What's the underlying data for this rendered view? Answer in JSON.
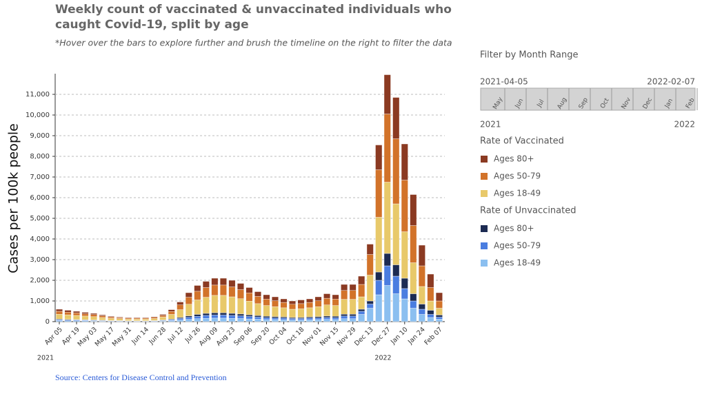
{
  "chart_data": {
    "type": "stacked_bar",
    "title_lines": [
      "Weekly count of vaccinated & unvaccinated individuals who",
      "caught Covid-19, split by age"
    ],
    "subtitle": "*Hover over the bars to explore further and brush the timeline on the right to filter the data",
    "y_axis_label": "Cases per 100k people",
    "source": "Source: Centers for Disease Control and Prevention",
    "categories": [
      "Apr 05",
      null,
      "Apr 19",
      null,
      "May 03",
      null,
      "May 17",
      null,
      "May 31",
      null,
      "Jun 14",
      null,
      "Jun 28",
      null,
      "Jul 12",
      null,
      "Jul 26",
      null,
      "Aug 09",
      null,
      "Aug 23",
      null,
      "Sep 06",
      null,
      "Sep 20",
      null,
      "Oct 04",
      null,
      "Oct 18",
      null,
      "Nov 01",
      null,
      "Nov 15",
      null,
      "Nov 29",
      null,
      "Dec 13",
      null,
      "Dec 27",
      null,
      "Jan 10",
      null,
      "Jan 24",
      null,
      "Feb 07"
    ],
    "year_labels": [
      "2021",
      "2022"
    ],
    "ylim": [
      0,
      12000
    ],
    "yticks": [
      0,
      {
        "value": 1000,
        "label": "1,000"
      },
      {
        "value": 2000,
        "label": "2,000"
      },
      {
        "value": 3000,
        "label": "3,000"
      },
      {
        "value": 4000,
        "label": "4,000"
      },
      {
        "value": 5000,
        "label": "5,000"
      },
      {
        "value": 6000,
        "label": "6,000"
      },
      {
        "value": 7000,
        "label": "7,000"
      },
      {
        "value": 8000,
        "label": "8,000"
      },
      {
        "value": 9000,
        "label": "9,000"
      },
      {
        "value": 10000,
        "label": "10,000"
      },
      {
        "value": 11000,
        "label": "11,000"
      }
    ],
    "grid": true,
    "series": [
      {
        "group": "Rate of Vaccinated",
        "name": "Ages 80+",
        "color": "#8b3a22",
        "values": [
          100,
          90,
          80,
          70,
          60,
          50,
          40,
          30,
          30,
          30,
          30,
          30,
          50,
          90,
          140,
          220,
          280,
          300,
          330,
          330,
          320,
          300,
          260,
          230,
          210,
          190,
          170,
          160,
          180,
          170,
          190,
          220,
          210,
          290,
          290,
          400,
          500,
          1200,
          1900,
          2000,
          1750,
          1500,
          1000,
          650,
          400
        ]
      },
      {
        "group": "Rate of Vaccinated",
        "name": "Ages 50-79",
        "color": "#d2732a",
        "values": [
          140,
          130,
          120,
          110,
          100,
          80,
          60,
          50,
          50,
          50,
          50,
          60,
          80,
          140,
          230,
          340,
          420,
          470,
          500,
          500,
          480,
          440,
          400,
          350,
          310,
          290,
          260,
          240,
          250,
          260,
          290,
          320,
          310,
          430,
          430,
          600,
          1000,
          2300,
          3300,
          3150,
          2500,
          1800,
          1000,
          650,
          350
        ]
      },
      {
        "group": "Rate of Vaccinated",
        "name": "Ages 18-49",
        "color": "#e8c96a",
        "values": [
          240,
          220,
          200,
          180,
          160,
          130,
          110,
          90,
          80,
          80,
          80,
          100,
          140,
          230,
          380,
          560,
          700,
          780,
          840,
          840,
          800,
          740,
          660,
          580,
          520,
          480,
          440,
          400,
          420,
          440,
          480,
          540,
          520,
          720,
          720,
          600,
          1250,
          2650,
          3450,
          2950,
          2250,
          1500,
          850,
          450,
          330
        ]
      },
      {
        "group": "Rate of Unvaccinated",
        "name": "Ages 80+",
        "color": "#1c2b52",
        "values": [
          30,
          30,
          20,
          20,
          20,
          20,
          10,
          10,
          10,
          10,
          10,
          10,
          20,
          30,
          50,
          70,
          90,
          100,
          110,
          110,
          100,
          90,
          80,
          70,
          70,
          60,
          60,
          50,
          50,
          60,
          60,
          70,
          70,
          90,
          90,
          100,
          150,
          400,
          600,
          550,
          500,
          350,
          250,
          200,
          100
        ]
      },
      {
        "group": "Rate of Unvaccinated",
        "name": "Ages 50-79",
        "color": "#4a7de0",
        "values": [
          40,
          40,
          40,
          30,
          30,
          20,
          20,
          20,
          10,
          10,
          10,
          20,
          30,
          40,
          70,
          100,
          120,
          140,
          150,
          150,
          140,
          130,
          120,
          100,
          90,
          80,
          80,
          70,
          70,
          80,
          80,
          90,
          90,
          130,
          130,
          150,
          200,
          700,
          950,
          850,
          500,
          350,
          250,
          150,
          100
        ]
      },
      {
        "group": "Rate of Unvaccinated",
        "name": "Ages 18-49",
        "color": "#8bbff0",
        "values": [
          50,
          40,
          40,
          40,
          30,
          30,
          20,
          20,
          20,
          20,
          20,
          20,
          30,
          50,
          80,
          110,
          140,
          160,
          170,
          170,
          160,
          150,
          130,
          120,
          100,
          100,
          90,
          80,
          80,
          90,
          100,
          110,
          100,
          140,
          140,
          350,
          650,
          1300,
          1750,
          1350,
          1100,
          650,
          350,
          200,
          120
        ]
      }
    ],
    "filter": {
      "title": "Filter by Month Range",
      "start": "2021-04-05",
      "end": "2022-02-07",
      "months": [
        "May",
        "Jun",
        "Jul",
        "Aug",
        "Sep",
        "Oct",
        "Nov",
        "Dec",
        "Jan",
        "Feb"
      ],
      "year_start": "2021",
      "year_end": "2022"
    }
  }
}
